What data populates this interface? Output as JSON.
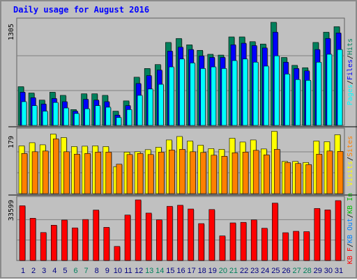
{
  "title": "Daily usage for August 2016",
  "colors": {
    "hits": "#00805c",
    "files": "#0000ff",
    "pages": "#00ffff",
    "visits": "#ffff00",
    "sites": "#ff8000",
    "kb_in": "#00c000",
    "kb_out": "#0080ff",
    "kb_f": "#ff0000",
    "weekend_day": "#00805c",
    "weekday": "#000080",
    "background": "#c0c0c0",
    "title": "#0000ff",
    "separator": "#000000"
  },
  "chart_data": [
    {
      "type": "bar",
      "panel": "hits-files-pages",
      "ymax_label": "1305",
      "ylim": [
        0,
        1305
      ],
      "categories": [
        "1",
        "2",
        "3",
        "4",
        "5",
        "6",
        "7",
        "8",
        "9",
        "10",
        "11",
        "12",
        "13",
        "14",
        "15",
        "16",
        "17",
        "18",
        "19",
        "20",
        "21",
        "22",
        "23",
        "24",
        "25",
        "26",
        "27",
        "28",
        "29",
        "30",
        "31"
      ],
      "weekend": [
        "6",
        "7",
        "13",
        "14",
        "20",
        "21",
        "27",
        "28"
      ],
      "series": [
        {
          "name": "Hits",
          "values": [
            490,
            410,
            320,
            420,
            380,
            200,
            400,
            400,
            380,
            180,
            310,
            610,
            720,
            770,
            1050,
            1100,
            1020,
            950,
            900,
            890,
            1120,
            1120,
            1060,
            1030,
            1305,
            860,
            760,
            730,
            1050,
            1180,
            1250
          ]
        },
        {
          "name": "Files",
          "values": [
            420,
            350,
            270,
            340,
            300,
            180,
            330,
            320,
            300,
            130,
            250,
            530,
            630,
            700,
            940,
            990,
            960,
            880,
            860,
            860,
            1020,
            1040,
            1010,
            980,
            1180,
            800,
            720,
            690,
            960,
            1100,
            1170
          ]
        },
        {
          "name": "Pages",
          "values": [
            300,
            250,
            180,
            290,
            220,
            150,
            210,
            250,
            230,
            100,
            200,
            380,
            460,
            520,
            740,
            840,
            790,
            720,
            740,
            720,
            820,
            840,
            800,
            750,
            880,
            650,
            580,
            570,
            800,
            900,
            960
          ]
        }
      ]
    },
    {
      "type": "bar",
      "panel": "visits-sites",
      "ymax_label": "179",
      "ylim": [
        0,
        179
      ],
      "categories": [
        "1",
        "2",
        "3",
        "4",
        "5",
        "6",
        "7",
        "8",
        "9",
        "10",
        "11",
        "12",
        "13",
        "14",
        "15",
        "16",
        "17",
        "18",
        "19",
        "20",
        "21",
        "22",
        "23",
        "24",
        "25",
        "26",
        "27",
        "28",
        "29",
        "30",
        "31"
      ],
      "series": [
        {
          "name": "Visits",
          "values": [
            138,
            147,
            141,
            172,
            162,
            136,
            137,
            138,
            136,
            78,
            120,
            121,
            127,
            134,
            155,
            165,
            152,
            140,
            130,
            128,
            160,
            149,
            155,
            129,
            180,
            93,
            93,
            90,
            152,
            150,
            170
          ]
        },
        {
          "name": "Sites",
          "values": [
            116,
            121,
            123,
            158,
            121,
            114,
            116,
            120,
            120,
            85,
            113,
            116,
            113,
            120,
            126,
            128,
            121,
            119,
            111,
            108,
            118,
            120,
            125,
            112,
            128,
            90,
            87,
            84,
            114,
            123,
            122
          ]
        }
      ]
    },
    {
      "type": "bar",
      "panel": "kbytes",
      "ymax_label": "33599",
      "ylim": [
        0,
        33599
      ],
      "categories": [
        "1",
        "2",
        "3",
        "4",
        "5",
        "6",
        "7",
        "8",
        "9",
        "10",
        "11",
        "12",
        "13",
        "14",
        "15",
        "16",
        "17",
        "18",
        "19",
        "20",
        "21",
        "22",
        "23",
        "24",
        "25",
        "26",
        "27",
        "28",
        "29",
        "30",
        "31"
      ],
      "series": [
        {
          "name": "KB F",
          "values": [
            30700,
            23700,
            15700,
            19800,
            22700,
            18300,
            23000,
            28300,
            18600,
            7900,
            25500,
            34000,
            26600,
            22800,
            30400,
            31000,
            28900,
            20700,
            28600,
            13800,
            21100,
            21400,
            22800,
            18100,
            32200,
            15600,
            16400,
            16200,
            29200,
            28400,
            33600
          ]
        }
      ]
    }
  ],
  "legends": {
    "top": [
      "Pages",
      "/",
      "Files",
      "/",
      "Hits"
    ],
    "middle": [
      "Visits",
      "/",
      "Sites"
    ],
    "bottom": [
      "KB F",
      "/",
      "KB Out",
      "/",
      "KB In"
    ]
  }
}
